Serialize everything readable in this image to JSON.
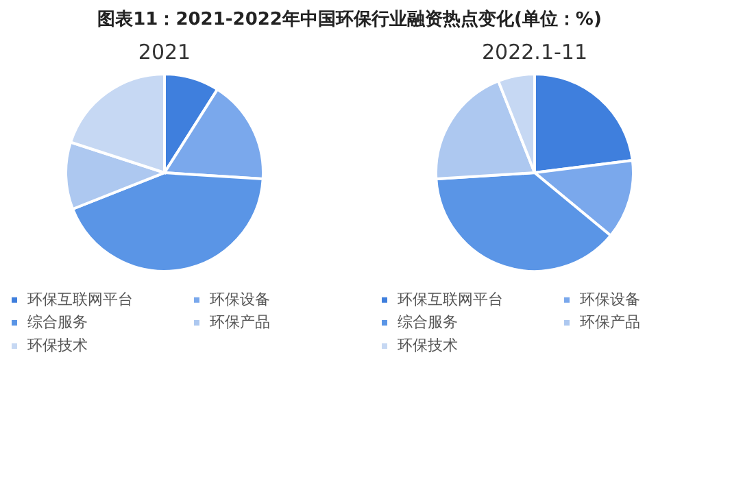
{
  "chart_data": [
    {
      "type": "pie",
      "title": "图表11：2021-2022年中国环保行业融资热点变化(单位：%)",
      "subtitle": "2021",
      "categories": [
        "环保互联网平台",
        "环保设备",
        "综合服务",
        "环保产品",
        "环保技术"
      ],
      "values": [
        9,
        17,
        43,
        11,
        20
      ],
      "colors": [
        "#3f7fdd",
        "#7aa8ec",
        "#5a95e6",
        "#adc8f0",
        "#c6d8f3"
      ],
      "legend": "bottom"
    },
    {
      "type": "pie",
      "subtitle": "2022.1-11",
      "categories": [
        "环保互联网平台",
        "环保设备",
        "综合服务",
        "环保产品",
        "环保技术"
      ],
      "values": [
        23,
        13,
        38,
        20,
        6
      ],
      "colors": [
        "#3f7fdd",
        "#7aa8ec",
        "#5a95e6",
        "#adc8f0",
        "#c6d8f3"
      ],
      "legend": "bottom"
    }
  ]
}
